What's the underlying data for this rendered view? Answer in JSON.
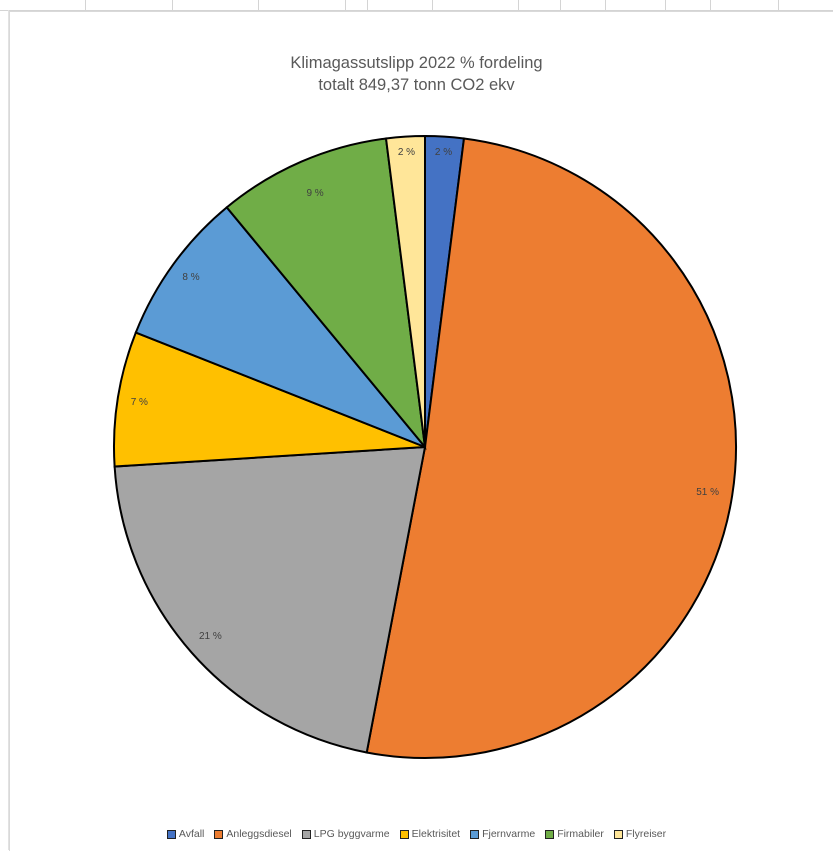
{
  "chart_data": {
    "type": "pie",
    "title": "Klimagassutslipp 2022 % fordeling",
    "subtitle": "totalt 849,37 tonn CO2 ekv",
    "legend_position": "bottom",
    "slices": [
      {
        "name": "Avfall",
        "value": 2,
        "label": "2 %",
        "color": "#4472C4"
      },
      {
        "name": "Anleggsdiesel",
        "value": 51,
        "label": "51 %",
        "color": "#ED7D31"
      },
      {
        "name": "LPG byggvarme",
        "value": 21,
        "label": "21 %",
        "color": "#A5A5A5"
      },
      {
        "name": "Elektrisitet",
        "value": 7,
        "label": "7 %",
        "color": "#FFC000"
      },
      {
        "name": "Fjernvarme",
        "value": 8,
        "label": "8 %",
        "color": "#5B9BD5"
      },
      {
        "name": "Firmabiler",
        "value": 9,
        "label": "9 %",
        "color": "#70AD47"
      },
      {
        "name": "Flyreiser",
        "value": 2,
        "label": "2 %",
        "color": "#FFE699"
      }
    ]
  }
}
